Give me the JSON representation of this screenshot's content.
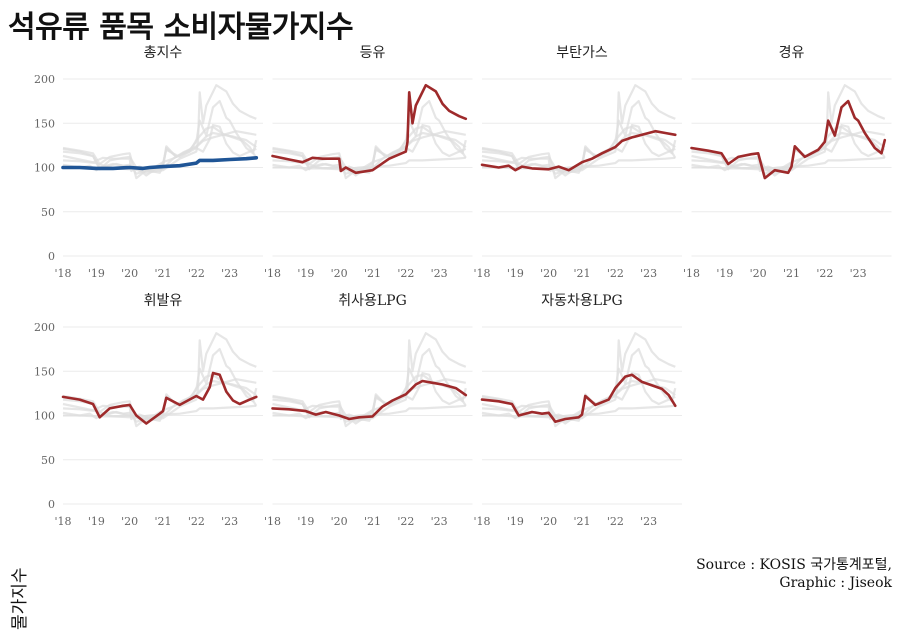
{
  "title": "석유류 품목 소비자물가지수",
  "ylabel": "물가지수",
  "caption_line1": "Source : KOSIS 국가통계포털,",
  "caption_line2": "Graphic : Jiseok",
  "colors": {
    "highlight_total": "#1f5596",
    "highlight_item": "#9e2a2b",
    "background": "#dddddd",
    "grid": "#ebebeb"
  },
  "chart_data": {
    "type": "line",
    "layout": "small-multiples",
    "x_ticks": [
      "'18",
      "'19",
      "'20",
      "'21",
      "'22",
      "'23"
    ],
    "x_tick_values": [
      2018,
      2019,
      2020,
      2021,
      2022,
      2023
    ],
    "xlim": [
      2018,
      2024
    ],
    "y_ticks": [
      0,
      50,
      100,
      150,
      200
    ],
    "ylim": [
      0,
      200
    ],
    "grid": true,
    "series": [
      {
        "name": "총지수",
        "x": [
          2018.0,
          2018.5,
          2019.0,
          2019.5,
          2020.0,
          2020.4,
          2020.6,
          2021.0,
          2021.5,
          2022.0,
          2022.1,
          2022.5,
          2023.0,
          2023.5,
          2023.8
        ],
        "values": [
          100,
          100,
          99,
          99,
          100,
          99,
          100,
          101,
          102,
          105,
          108,
          108,
          109,
          110,
          111
        ]
      },
      {
        "name": "등유",
        "x": [
          2018.0,
          2018.5,
          2018.9,
          2019.2,
          2019.5,
          2020.0,
          2020.05,
          2020.2,
          2020.5,
          2021.0,
          2021.5,
          2022.0,
          2022.05,
          2022.1,
          2022.2,
          2022.3,
          2022.6,
          2022.9,
          2023.1,
          2023.3,
          2023.6,
          2023.8
        ],
        "values": [
          113,
          109,
          106,
          111,
          110,
          110,
          96,
          100,
          94,
          97,
          110,
          118,
          129,
          185,
          150,
          170,
          193,
          186,
          172,
          164,
          158,
          155
        ]
      },
      {
        "name": "부탄가스",
        "x": [
          2018.0,
          2018.5,
          2018.8,
          2019.0,
          2019.2,
          2019.5,
          2020.0,
          2020.3,
          2020.6,
          2021.0,
          2021.3,
          2021.6,
          2022.0,
          2022.2,
          2022.5,
          2022.9,
          2023.2,
          2023.5,
          2023.8
        ],
        "values": [
          103,
          100,
          102,
          97,
          101,
          99,
          98,
          101,
          97,
          106,
          110,
          116,
          123,
          130,
          134,
          138,
          141,
          139,
          137
        ]
      },
      {
        "name": "경유",
        "x": [
          2018.0,
          2018.5,
          2018.9,
          2019.1,
          2019.4,
          2019.8,
          2020.0,
          2020.2,
          2020.5,
          2020.9,
          2021.0,
          2021.1,
          2021.4,
          2021.8,
          2022.0,
          2022.1,
          2022.3,
          2022.5,
          2022.7,
          2022.9,
          2023.0,
          2023.2,
          2023.5,
          2023.7,
          2023.8
        ],
        "values": [
          122,
          119,
          116,
          104,
          112,
          115,
          116,
          88,
          97,
          94,
          101,
          124,
          112,
          120,
          129,
          153,
          136,
          168,
          175,
          156,
          153,
          139,
          122,
          116,
          131
        ]
      },
      {
        "name": "휘발유",
        "x": [
          2018.0,
          2018.5,
          2018.9,
          2019.1,
          2019.4,
          2019.8,
          2020.0,
          2020.2,
          2020.5,
          2020.9,
          2021.0,
          2021.1,
          2021.5,
          2022.0,
          2022.2,
          2022.4,
          2022.5,
          2022.7,
          2022.9,
          2023.1,
          2023.3,
          2023.6,
          2023.8
        ],
        "values": [
          121,
          118,
          113,
          98,
          108,
          111,
          112,
          100,
          91,
          102,
          105,
          120,
          112,
          122,
          118,
          132,
          148,
          146,
          127,
          117,
          113,
          118,
          121
        ]
      },
      {
        "name": "취사용LPG",
        "x": [
          2018.0,
          2018.5,
          2019.0,
          2019.3,
          2019.6,
          2020.0,
          2020.3,
          2020.6,
          2021.0,
          2021.3,
          2021.6,
          2022.0,
          2022.3,
          2022.5,
          2022.8,
          2023.1,
          2023.5,
          2023.8
        ],
        "values": [
          108,
          107,
          105,
          101,
          104,
          100,
          96,
          98,
          99,
          110,
          117,
          124,
          135,
          139,
          137,
          135,
          131,
          123
        ]
      },
      {
        "name": "자동차용LPG",
        "x": [
          2018.0,
          2018.5,
          2018.9,
          2019.1,
          2019.5,
          2019.8,
          2020.0,
          2020.2,
          2020.5,
          2020.9,
          2021.0,
          2021.1,
          2021.4,
          2021.8,
          2022.0,
          2022.3,
          2022.5,
          2022.8,
          2023.1,
          2023.4,
          2023.6,
          2023.8
        ],
        "values": [
          118,
          116,
          113,
          100,
          104,
          102,
          103,
          93,
          96,
          98,
          101,
          122,
          112,
          118,
          131,
          144,
          146,
          138,
          134,
          130,
          123,
          111
        ]
      }
    ]
  }
}
